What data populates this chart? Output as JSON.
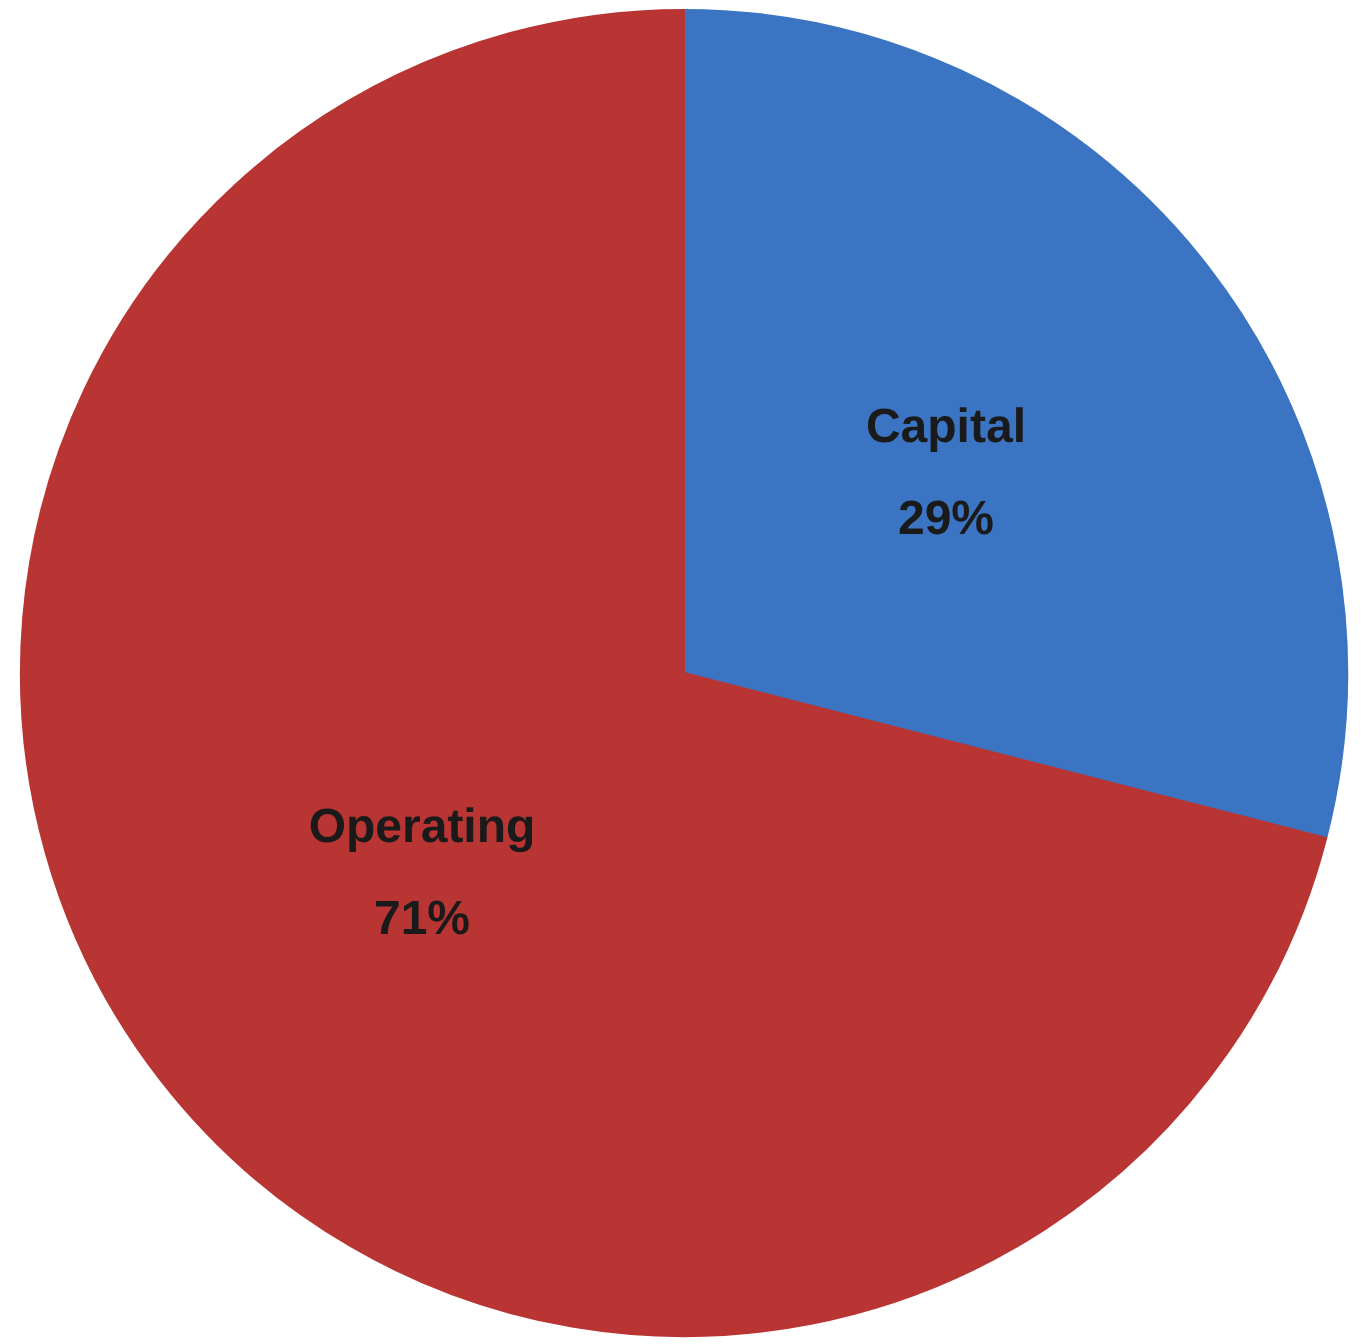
{
  "chart_data": {
    "type": "pie",
    "categories": [
      "Capital",
      "Operating"
    ],
    "values": [
      29,
      71
    ],
    "colors": [
      "#3b74c2",
      "#b83533"
    ],
    "value_labels": [
      "29%",
      "71%"
    ]
  }
}
